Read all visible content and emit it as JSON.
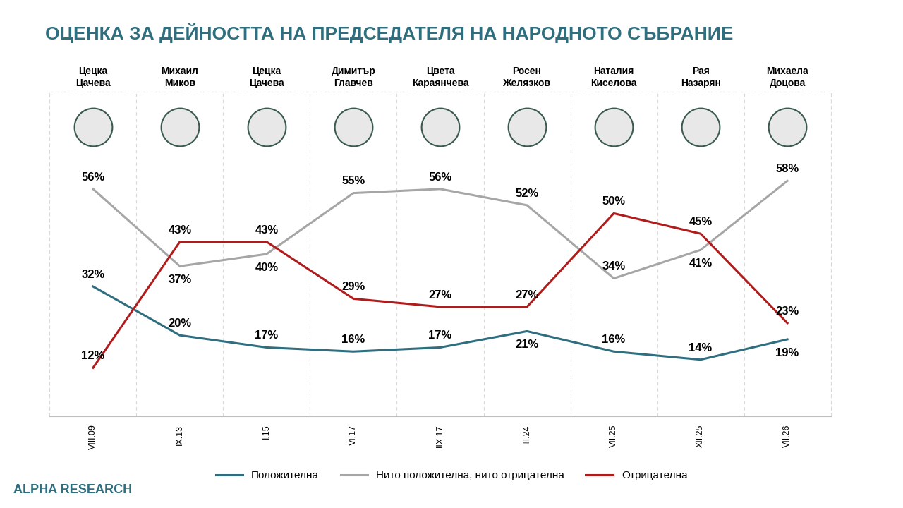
{
  "chart_data": {
    "type": "line",
    "title": "ОЦЕНКА ЗА ДЕЙНОСТТА НА ПРЕДСЕДАТЕЛЯ НА НАРОДНОТО СЪБРАНИЕ",
    "categories": [
      "VIII.09",
      "IX.13",
      "I.15",
      "VI.17",
      "IIX.17",
      "III.24",
      "VII.25",
      "XII.25",
      "VII.26"
    ],
    "names": [
      "Цецка\nЦачева",
      "Михаил\nМиков",
      "Цецка\nЦачева",
      "Димитър\nГлавчев",
      "Цвета\nКараянчева",
      "Росен\nЖелязков",
      "Наталия\nКиселова",
      "Рая\nНазарян",
      "Михаела\nДоцова"
    ],
    "series": [
      {
        "name": "Положителна",
        "color": "#2e6e7e",
        "values": [
          32,
          20,
          17,
          16,
          17,
          21,
          16,
          14,
          19
        ],
        "value_labels": [
          "32%",
          "20%",
          "17%",
          "16%",
          "17%",
          "21%",
          "16%",
          "14%",
          "19%"
        ]
      },
      {
        "name": "Нито положителна, нито отрицателна",
        "color": "#a6a6a6",
        "values": [
          56,
          37,
          40,
          55,
          56,
          52,
          34,
          41,
          58
        ],
        "value_labels": [
          "56%",
          "37%",
          "40%",
          "55%",
          "56%",
          "52%",
          "34%",
          "41%",
          "58%"
        ]
      },
      {
        "name": "Отрицателна",
        "color": "#b01c1c",
        "values": [
          12,
          43,
          43,
          29,
          27,
          27,
          50,
          45,
          23
        ],
        "value_labels": [
          "12%",
          "43%",
          "43%",
          "29%",
          "27%",
          "27%",
          "50%",
          "45%",
          "23%"
        ]
      }
    ],
    "ylim": [
      0,
      80
    ],
    "data_labels": true,
    "tick_labels": "x",
    "legend": "lower center",
    "source": "ALPHA RESEARCH"
  }
}
